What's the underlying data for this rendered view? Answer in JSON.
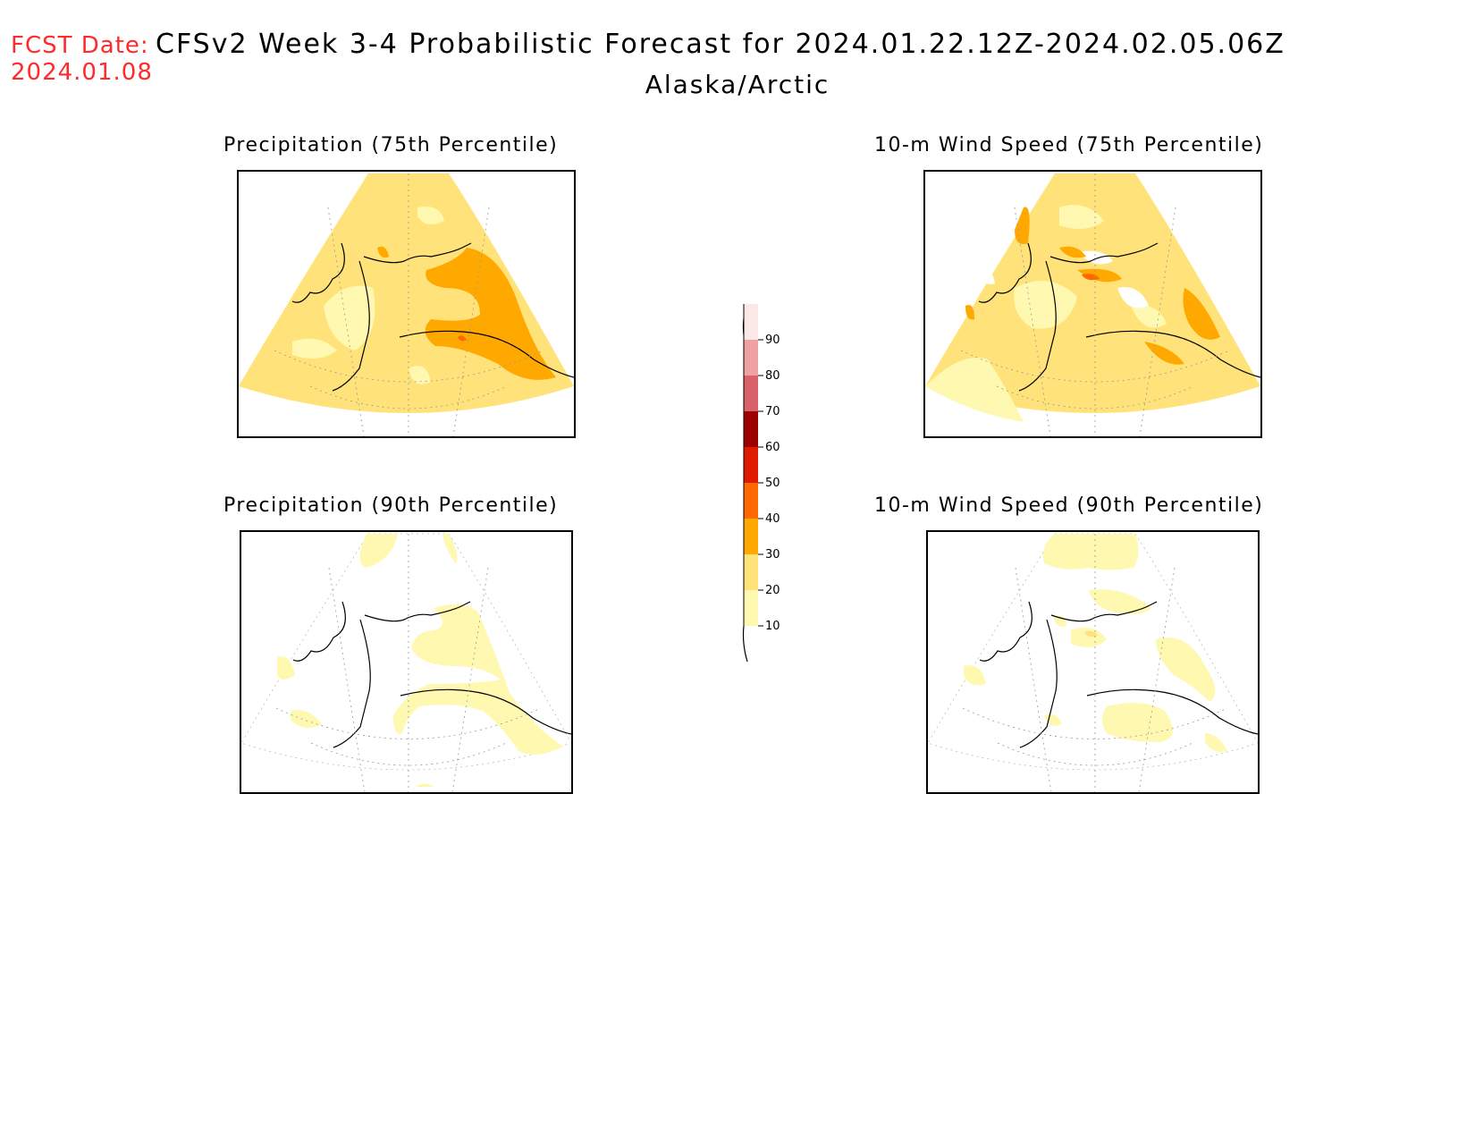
{
  "header": {
    "fcst_label": "FCST Date:",
    "fcst_date": "2024.01.08",
    "title": "CFSv2 Week 3-4 Probabilistic Forecast for 2024.01.22.12Z-2024.02.05.06Z",
    "region": "Alaska/Arctic"
  },
  "panels": [
    {
      "title": "Precipitation (75th Percentile)"
    },
    {
      "title": "10-m Wind Speed (75th Percentile)"
    },
    {
      "title": "Precipitation (90th Percentile)"
    },
    {
      "title": "10-m Wind Speed (90th Percentile)"
    }
  ],
  "colorbar": {
    "levels": [
      "10",
      "20",
      "30",
      "40",
      "50",
      "60",
      "70",
      "80",
      "90"
    ],
    "colors": {
      "10": "#fff8b0",
      "20": "#ffe37a",
      "30": "#ffa800",
      "40": "#ff6a00",
      "50": "#e01a00",
      "60": "#9c0000",
      "70": "#d9616a",
      "80": "#f0a2a2",
      "90": "#fde8e8"
    }
  }
}
